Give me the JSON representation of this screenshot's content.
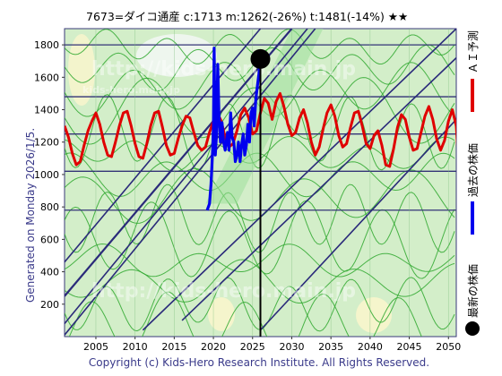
{
  "header": {
    "text": "7673=ダイコ通産 c:1713 m:1262(-26%) t:1481(-14%) ★★"
  },
  "side_label": "Generated on Monday 2026/1/5.",
  "footer": "Copyright (c) Kids-Hero Research Institute. All Rights Reserved.",
  "watermark": {
    "lines": [
      "http://kids-hero.main.jp",
      "kids-hero.main.jp",
      "http://kids-hero.main.jp"
    ]
  },
  "legend": [
    {
      "label": "ＡＩ予測",
      "color": "#e00000"
    },
    {
      "label": "過去の株価",
      "color": "#0000ee"
    },
    {
      "label": "最新の株価",
      "color": "#000000"
    }
  ],
  "colors": {
    "prediction": "#e00000",
    "history": "#0000ee",
    "latest": "#000000",
    "grid": "#333377",
    "trend": "#2a2a7a",
    "band": "#2fa82f"
  },
  "chart_data": {
    "type": "line",
    "x_range": [
      2001,
      2051
    ],
    "ylim": [
      0,
      1900
    ],
    "x_ticks": [
      2005,
      2010,
      2015,
      2020,
      2025,
      2030,
      2035,
      2040,
      2045,
      2050
    ],
    "y_ticks": [
      200,
      400,
      600,
      800,
      1000,
      1200,
      1400,
      1600,
      1800
    ],
    "hlines": [
      780,
      1020,
      1250,
      1480,
      1800
    ],
    "latest": {
      "x": 2026.0,
      "y": 1713
    },
    "series": [
      {
        "name": "ＡＩ予測",
        "color": "#e00000",
        "points": [
          [
            2001,
            1300
          ],
          [
            2001.5,
            1230
          ],
          [
            2002,
            1130
          ],
          [
            2002.5,
            1060
          ],
          [
            2003,
            1080
          ],
          [
            2003.5,
            1180
          ],
          [
            2004,
            1270
          ],
          [
            2004.5,
            1330
          ],
          [
            2005,
            1380
          ],
          [
            2005.5,
            1310
          ],
          [
            2006,
            1200
          ],
          [
            2006.5,
            1120
          ],
          [
            2007,
            1110
          ],
          [
            2007.5,
            1200
          ],
          [
            2008,
            1300
          ],
          [
            2008.5,
            1380
          ],
          [
            2009,
            1390
          ],
          [
            2009.5,
            1300
          ],
          [
            2010,
            1190
          ],
          [
            2010.5,
            1110
          ],
          [
            2011,
            1100
          ],
          [
            2011.5,
            1190
          ],
          [
            2012,
            1300
          ],
          [
            2012.5,
            1380
          ],
          [
            2013,
            1390
          ],
          [
            2013.5,
            1290
          ],
          [
            2014,
            1180
          ],
          [
            2014.5,
            1120
          ],
          [
            2015,
            1130
          ],
          [
            2015.5,
            1220
          ],
          [
            2016,
            1300
          ],
          [
            2016.5,
            1360
          ],
          [
            2017,
            1350
          ],
          [
            2017.5,
            1260
          ],
          [
            2018,
            1180
          ],
          [
            2018.5,
            1150
          ],
          [
            2019,
            1170
          ],
          [
            2019.5,
            1260
          ],
          [
            2020,
            1330
          ],
          [
            2020.5,
            1380
          ],
          [
            2021,
            1330
          ],
          [
            2021.5,
            1230
          ],
          [
            2022,
            1170
          ],
          [
            2022.5,
            1190
          ],
          [
            2023,
            1270
          ],
          [
            2023.5,
            1370
          ],
          [
            2024,
            1410
          ],
          [
            2024.5,
            1350
          ],
          [
            2025,
            1250
          ],
          [
            2025.5,
            1270
          ],
          [
            2026,
            1380
          ],
          [
            2026.5,
            1470
          ],
          [
            2027,
            1440
          ],
          [
            2027.5,
            1340
          ],
          [
            2028,
            1450
          ],
          [
            2028.5,
            1500
          ],
          [
            2029,
            1420
          ],
          [
            2029.5,
            1310
          ],
          [
            2030,
            1240
          ],
          [
            2030.5,
            1260
          ],
          [
            2031,
            1350
          ],
          [
            2031.5,
            1400
          ],
          [
            2032,
            1320
          ],
          [
            2032.5,
            1200
          ],
          [
            2033,
            1120
          ],
          [
            2033.5,
            1170
          ],
          [
            2034,
            1280
          ],
          [
            2034.5,
            1380
          ],
          [
            2035,
            1430
          ],
          [
            2035.5,
            1360
          ],
          [
            2036,
            1240
          ],
          [
            2036.5,
            1170
          ],
          [
            2037,
            1190
          ],
          [
            2037.5,
            1290
          ],
          [
            2038,
            1380
          ],
          [
            2038.5,
            1390
          ],
          [
            2039,
            1300
          ],
          [
            2039.5,
            1190
          ],
          [
            2040,
            1160
          ],
          [
            2040.5,
            1240
          ],
          [
            2041,
            1270
          ],
          [
            2041.5,
            1180
          ],
          [
            2042,
            1060
          ],
          [
            2042.5,
            1050
          ],
          [
            2043,
            1160
          ],
          [
            2043.5,
            1290
          ],
          [
            2044,
            1370
          ],
          [
            2044.5,
            1340
          ],
          [
            2045,
            1230
          ],
          [
            2045.5,
            1150
          ],
          [
            2046,
            1160
          ],
          [
            2046.5,
            1260
          ],
          [
            2047,
            1360
          ],
          [
            2047.5,
            1420
          ],
          [
            2048,
            1340
          ],
          [
            2048.5,
            1220
          ],
          [
            2049,
            1150
          ],
          [
            2049.5,
            1210
          ],
          [
            2050,
            1330
          ],
          [
            2050.5,
            1400
          ],
          [
            2051,
            1300
          ],
          [
            2051.2,
            1150
          ]
        ]
      },
      {
        "name": "過去の株価",
        "color": "#0000ee",
        "points": [
          [
            2019.2,
            780
          ],
          [
            2019.5,
            820
          ],
          [
            2019.7,
            940
          ],
          [
            2019.9,
            1150
          ],
          [
            2020.0,
            1300
          ],
          [
            2020.1,
            1780
          ],
          [
            2020.25,
            1120
          ],
          [
            2020.4,
            1250
          ],
          [
            2020.55,
            1680
          ],
          [
            2020.7,
            1380
          ],
          [
            2020.9,
            1200
          ],
          [
            2021.1,
            1320
          ],
          [
            2021.3,
            1200
          ],
          [
            2021.5,
            1150
          ],
          [
            2021.8,
            1260
          ],
          [
            2022.0,
            1150
          ],
          [
            2022.2,
            1380
          ],
          [
            2022.4,
            1230
          ],
          [
            2022.6,
            1200
          ],
          [
            2022.8,
            1080
          ],
          [
            2023.0,
            1120
          ],
          [
            2023.2,
            1200
          ],
          [
            2023.4,
            1080
          ],
          [
            2023.6,
            1180
          ],
          [
            2023.8,
            1250
          ],
          [
            2024.0,
            1120
          ],
          [
            2024.2,
            1180
          ],
          [
            2024.4,
            1310
          ],
          [
            2024.6,
            1200
          ],
          [
            2024.8,
            1380
          ],
          [
            2025.0,
            1410
          ],
          [
            2025.2,
            1300
          ],
          [
            2025.4,
            1460
          ],
          [
            2025.6,
            1540
          ],
          [
            2025.8,
            1620
          ],
          [
            2026.0,
            1713
          ]
        ]
      }
    ],
    "trendlines": [
      [
        [
          2001,
          250
        ],
        [
          2030,
          1900
        ]
      ],
      [
        [
          2001,
          460
        ],
        [
          2026,
          1900
        ]
      ],
      [
        [
          2001,
          10
        ],
        [
          2033,
          1900
        ]
      ],
      [
        [
          2001,
          80
        ],
        [
          2032,
          1900
        ]
      ],
      [
        [
          2016,
          100
        ],
        [
          2051,
          1720
        ]
      ],
      [
        [
          2011,
          40
        ],
        [
          2051,
          1900
        ]
      ],
      [
        [
          2026,
          40
        ],
        [
          2051,
          1340
        ]
      ]
    ]
  }
}
